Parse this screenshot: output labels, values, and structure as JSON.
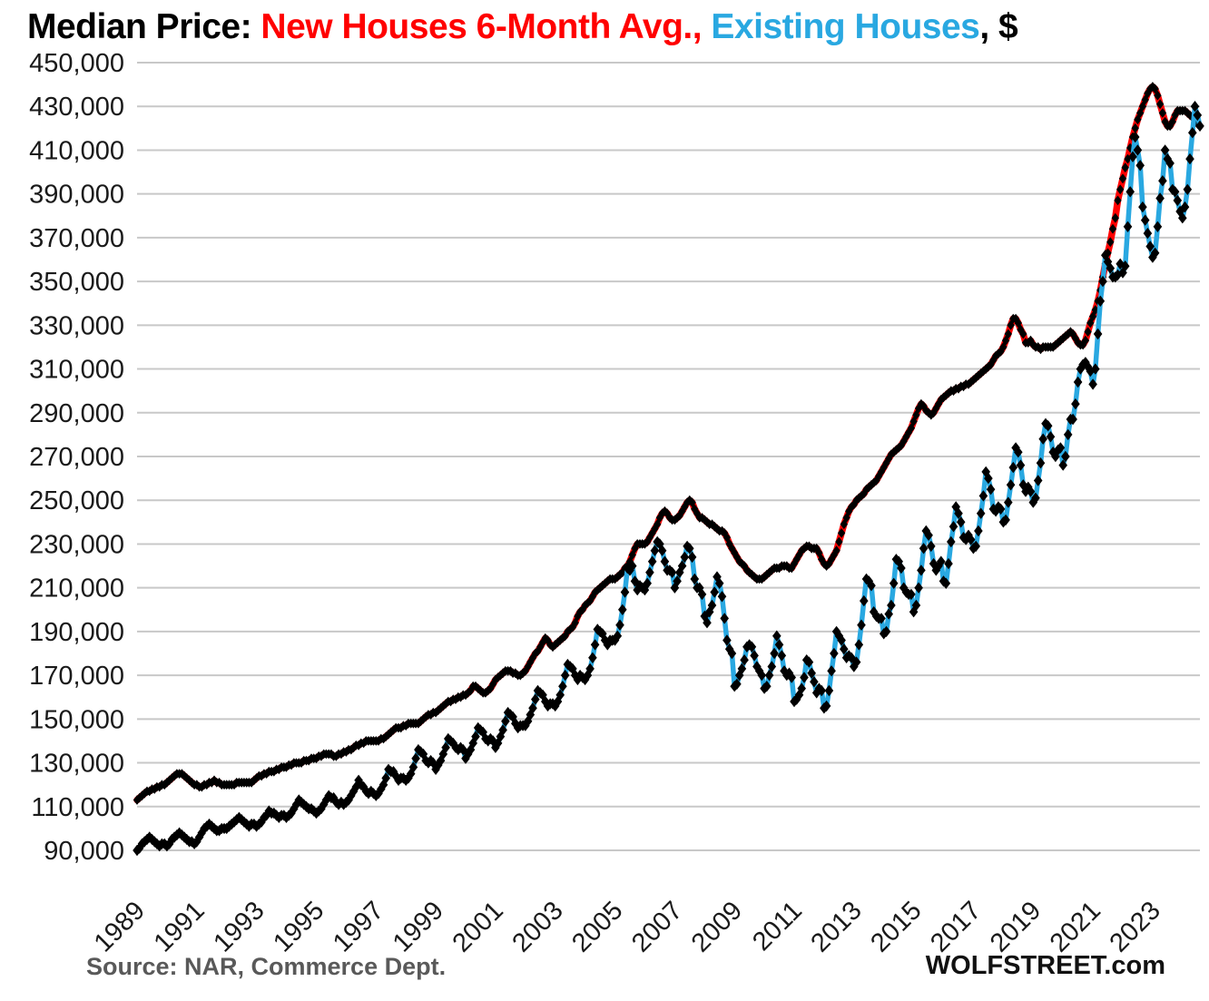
{
  "title": {
    "prefix": "Median Price: ",
    "series_new_label": "New Houses 6-Month Avg.,",
    "spacer": " ",
    "series_existing_label": "Existing Houses",
    "suffix": ", $"
  },
  "footer": {
    "source": "Source: NAR, Commerce Dept.",
    "brand": "WOLFSTREET.com"
  },
  "chart_data": {
    "type": "line",
    "title": "Median Price: New Houses 6-Month Avg., Existing Houses, $",
    "xlabel": "",
    "ylabel": "",
    "unit": "USD",
    "values_unit": "thousands of dollars",
    "x_start": "1989-01",
    "x_end": "2024-08",
    "x_frequency": "monthly",
    "x_tick_years": [
      "1989",
      "1991",
      "1993",
      "1995",
      "1997",
      "1999",
      "2001",
      "2003",
      "2005",
      "2007",
      "2009",
      "2011",
      "2013",
      "2015",
      "2017",
      "2019",
      "2021",
      "2023"
    ],
    "ylim_thousands": [
      90,
      450
    ],
    "y_tick_step_thousands": 20,
    "y_tick_labels_top_to_bottom": [
      "450,000",
      "430,000",
      "410,000",
      "390,000",
      "370,000",
      "350,000",
      "330,000",
      "310,000",
      "290,000",
      "270,000",
      "250,000",
      "230,000",
      "210,000",
      "190,000",
      "170,000",
      "150,000",
      "130,000",
      "110,000",
      "90,000"
    ],
    "grid": "horizontal-only",
    "legend_position": "in-title",
    "colors": {
      "new_houses_line": "#ff0000",
      "existing_houses_line": "#29a8e1",
      "markers": "#000000",
      "grid": "#c8c8c8",
      "axis_text": "#1a1a1a",
      "source_text": "#595959"
    },
    "series": [
      {
        "name": "New Houses 6-Month Avg.",
        "color_key": "new_houses_line",
        "values_thousands": [
          113,
          114,
          115,
          116,
          117,
          117,
          118,
          118,
          119,
          119,
          120,
          120,
          121,
          122,
          123,
          124,
          125,
          125,
          125,
          124,
          123,
          122,
          121,
          120,
          120,
          119,
          119,
          120,
          120,
          121,
          121,
          122,
          121,
          121,
          120,
          120,
          120,
          120,
          120,
          120,
          121,
          121,
          121,
          121,
          121,
          121,
          121,
          122,
          123,
          124,
          124,
          125,
          125,
          126,
          126,
          126,
          127,
          127,
          128,
          128,
          128,
          129,
          129,
          130,
          130,
          130,
          130,
          131,
          131,
          131,
          132,
          132,
          132,
          133,
          133,
          134,
          134,
          134,
          134,
          133,
          133,
          134,
          134,
          135,
          135,
          136,
          136,
          137,
          138,
          138,
          139,
          139,
          140,
          140,
          140,
          140,
          140,
          140,
          141,
          141,
          142,
          143,
          144,
          145,
          146,
          146,
          146,
          147,
          147,
          148,
          148,
          148,
          148,
          148,
          149,
          150,
          151,
          152,
          152,
          153,
          153,
          154,
          155,
          156,
          157,
          158,
          158,
          159,
          159,
          160,
          160,
          161,
          161,
          162,
          163,
          165,
          165,
          164,
          163,
          162,
          162,
          163,
          164,
          166,
          168,
          169,
          170,
          171,
          172,
          172,
          172,
          171,
          171,
          170,
          170,
          171,
          172,
          174,
          176,
          178,
          180,
          181,
          183,
          185,
          187,
          186,
          184,
          183,
          184,
          185,
          186,
          187,
          188,
          190,
          191,
          192,
          194,
          197,
          199,
          200,
          202,
          203,
          204,
          206,
          208,
          209,
          210,
          211,
          212,
          213,
          214,
          214,
          214,
          215,
          216,
          217,
          219,
          220,
          222,
          225,
          228,
          230,
          230,
          230,
          230,
          231,
          233,
          235,
          237,
          239,
          242,
          244,
          245,
          244,
          242,
          241,
          241,
          242,
          243,
          245,
          247,
          249,
          250,
          249,
          246,
          244,
          242,
          242,
          241,
          240,
          239,
          239,
          238,
          237,
          236,
          236,
          235,
          233,
          230,
          228,
          226,
          224,
          222,
          221,
          220,
          218,
          217,
          216,
          215,
          214,
          214,
          214,
          215,
          216,
          217,
          218,
          219,
          219,
          219,
          220,
          220,
          220,
          219,
          219,
          221,
          223,
          225,
          227,
          228,
          229,
          229,
          228,
          228,
          228,
          226,
          223,
          221,
          220,
          221,
          223,
          225,
          227,
          231,
          235,
          239,
          242,
          245,
          247,
          248,
          250,
          251,
          252,
          253,
          255,
          256,
          257,
          258,
          259,
          261,
          263,
          265,
          267,
          269,
          271,
          272,
          273,
          274,
          275,
          277,
          279,
          281,
          283,
          286,
          289,
          292,
          294,
          293,
          291,
          290,
          289,
          290,
          292,
          294,
          296,
          297,
          298,
          299,
          300,
          300,
          301,
          301,
          302,
          302,
          303,
          303,
          304,
          305,
          306,
          307,
          308,
          309,
          310,
          311,
          312,
          314,
          316,
          317,
          318,
          320,
          323,
          326,
          330,
          333,
          333,
          331,
          328,
          326,
          322,
          322,
          323,
          321,
          320,
          320,
          319,
          320,
          320,
          320,
          320,
          320,
          321,
          322,
          323,
          324,
          325,
          326,
          327,
          326,
          324,
          322,
          321,
          321,
          323,
          327,
          331,
          334,
          337,
          341,
          346,
          352,
          358,
          363,
          368,
          374,
          379,
          387,
          392,
          397,
          402,
          406,
          411,
          416,
          420,
          424,
          427,
          430,
          433,
          436,
          438,
          439,
          438,
          435,
          431,
          427,
          423,
          421,
          421,
          423,
          426,
          428,
          428,
          428,
          428,
          427,
          426,
          425,
          424,
          422,
          421
        ]
      },
      {
        "name": "Existing Houses",
        "color_key": "existing_houses_line",
        "values_thousands": [
          90,
          91,
          93,
          94,
          95,
          96,
          95,
          94,
          93,
          92,
          93,
          93,
          92,
          93,
          95,
          96,
          97,
          98,
          97,
          96,
          95,
          94,
          94,
          93,
          94,
          96,
          98,
          100,
          101,
          102,
          101,
          100,
          99,
          99,
          100,
          100,
          100,
          101,
          102,
          103,
          104,
          105,
          104,
          103,
          102,
          101,
          102,
          102,
          101,
          102,
          103,
          105,
          106,
          108,
          107,
          107,
          106,
          105,
          106,
          106,
          105,
          106,
          107,
          109,
          111,
          113,
          112,
          111,
          110,
          109,
          109,
          108,
          107,
          108,
          109,
          111,
          113,
          115,
          114,
          114,
          112,
          111,
          112,
          111,
          112,
          113,
          115,
          117,
          119,
          122,
          120,
          119,
          117,
          116,
          117,
          116,
          115,
          116,
          118,
          120,
          123,
          127,
          126,
          126,
          124,
          122,
          123,
          123,
          122,
          123,
          125,
          128,
          132,
          136,
          135,
          134,
          131,
          130,
          131,
          130,
          127,
          129,
          131,
          134,
          137,
          141,
          140,
          139,
          137,
          136,
          137,
          136,
          132,
          134,
          136,
          139,
          142,
          146,
          145,
          144,
          141,
          140,
          141,
          140,
          137,
          139,
          142,
          145,
          149,
          153,
          152,
          151,
          148,
          146,
          147,
          147,
          147,
          149,
          152,
          155,
          159,
          163,
          162,
          161,
          158,
          156,
          157,
          157,
          156,
          158,
          161,
          165,
          170,
          175,
          174,
          173,
          170,
          168,
          170,
          169,
          168,
          170,
          173,
          178,
          184,
          191,
          190,
          189,
          186,
          184,
          186,
          186,
          186,
          188,
          193,
          200,
          208,
          219,
          218,
          220,
          213,
          209,
          211,
          210,
          209,
          212,
          217,
          222,
          227,
          231,
          230,
          227,
          222,
          218,
          218,
          217,
          210,
          213,
          217,
          220,
          224,
          229,
          228,
          224,
          214,
          210,
          210,
          207,
          197,
          194,
          199,
          202,
          208,
          215,
          212,
          206,
          196,
          186,
          182,
          180,
          165,
          166,
          170,
          173,
          177,
          183,
          184,
          183,
          179,
          174,
          172,
          170,
          164,
          165,
          170,
          174,
          180,
          188,
          184,
          179,
          172,
          170,
          171,
          169,
          158,
          159,
          161,
          164,
          169,
          177,
          176,
          171,
          167,
          162,
          164,
          163,
          155,
          156,
          163,
          172,
          180,
          190,
          188,
          186,
          182,
          178,
          179,
          178,
          174,
          176,
          184,
          193,
          204,
          214,
          213,
          211,
          199,
          197,
          196,
          196,
          189,
          190,
          198,
          202,
          212,
          223,
          222,
          219,
          210,
          208,
          207,
          207,
          199,
          202,
          210,
          218,
          228,
          236,
          234,
          229,
          221,
          218,
          220,
          222,
          213,
          212,
          221,
          231,
          238,
          247,
          244,
          240,
          233,
          232,
          234,
          232,
          228,
          229,
          236,
          244,
          252,
          263,
          260,
          255,
          246,
          245,
          247,
          246,
          240,
          241,
          249,
          257,
          265,
          274,
          272,
          266,
          257,
          254,
          256,
          254,
          249,
          251,
          259,
          267,
          278,
          285,
          284,
          279,
          272,
          270,
          273,
          274,
          266,
          270,
          280,
          287,
          287,
          294,
          304,
          310,
          312,
          313,
          311,
          309,
          303,
          310,
          326,
          341,
          350,
          362,
          359,
          356,
          352,
          352,
          353,
          358,
          354,
          357,
          375,
          391,
          407,
          416,
          410,
          403,
          384,
          378,
          372,
          366,
          361,
          363,
          375,
          388,
          396,
          410,
          406,
          404,
          392,
          391,
          387,
          382,
          379,
          384,
          392,
          406,
          418,
          430,
          426,
          421
        ]
      }
    ]
  }
}
